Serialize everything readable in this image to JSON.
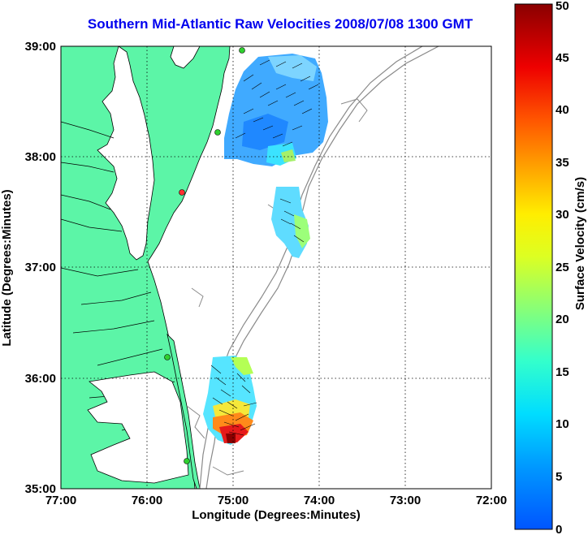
{
  "title": "Southern Mid-Atlantic Raw Velocities 2008/07/08 1300 GMT",
  "map": {
    "xlabel": "Longitude (Degrees:Minutes)",
    "ylabel": "Latitude (Degrees:Minutes)",
    "lon_range": [
      -77,
      -72
    ],
    "lat_range": [
      35,
      39
    ],
    "x_ticks": [
      "77:00",
      "76:00",
      "75:00",
      "74:00",
      "73:00",
      "72:00"
    ],
    "y_ticks": [
      "35:00",
      "36:00",
      "37:00",
      "38:00",
      "39:00"
    ],
    "grid": true,
    "land_color": "#5cf5a7",
    "water_color": "#ffffff",
    "colorbar": {
      "label": "Surface Velocity (cm/s)",
      "min": 0,
      "max": 50,
      "ticks": [
        "0",
        "5",
        "10",
        "15",
        "20",
        "25",
        "30",
        "35",
        "40",
        "45",
        "50"
      ]
    },
    "station_markers": [
      {
        "color": "#2fd02f"
      },
      {
        "color": "#2fd02f"
      },
      {
        "color": "#ff3030"
      },
      {
        "color": "#2fd02f"
      },
      {
        "color": "#2fd02f"
      }
    ]
  }
}
